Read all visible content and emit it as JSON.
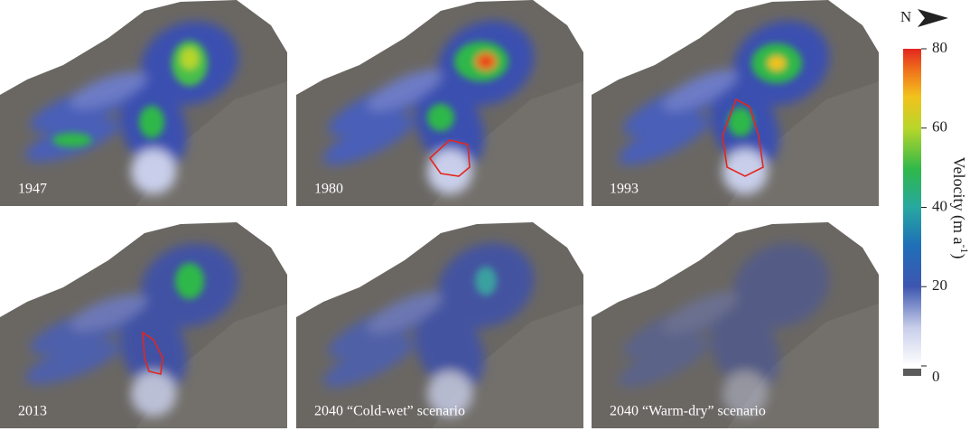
{
  "panels": [
    {
      "label": "1947"
    },
    {
      "label": "1980"
    },
    {
      "label": "1993"
    },
    {
      "label": "2013"
    },
    {
      "label": "2040 “Cold-wet” scenario"
    },
    {
      "label": "2040 “Warm-dry” scenario"
    }
  ],
  "north": "N",
  "colorbar": {
    "label": "Velocity (m a",
    "label_sup": "-1",
    "label_end": ")",
    "lim": [
      0,
      80
    ],
    "ticks": [
      0,
      20,
      40,
      60,
      80
    ]
  }
}
